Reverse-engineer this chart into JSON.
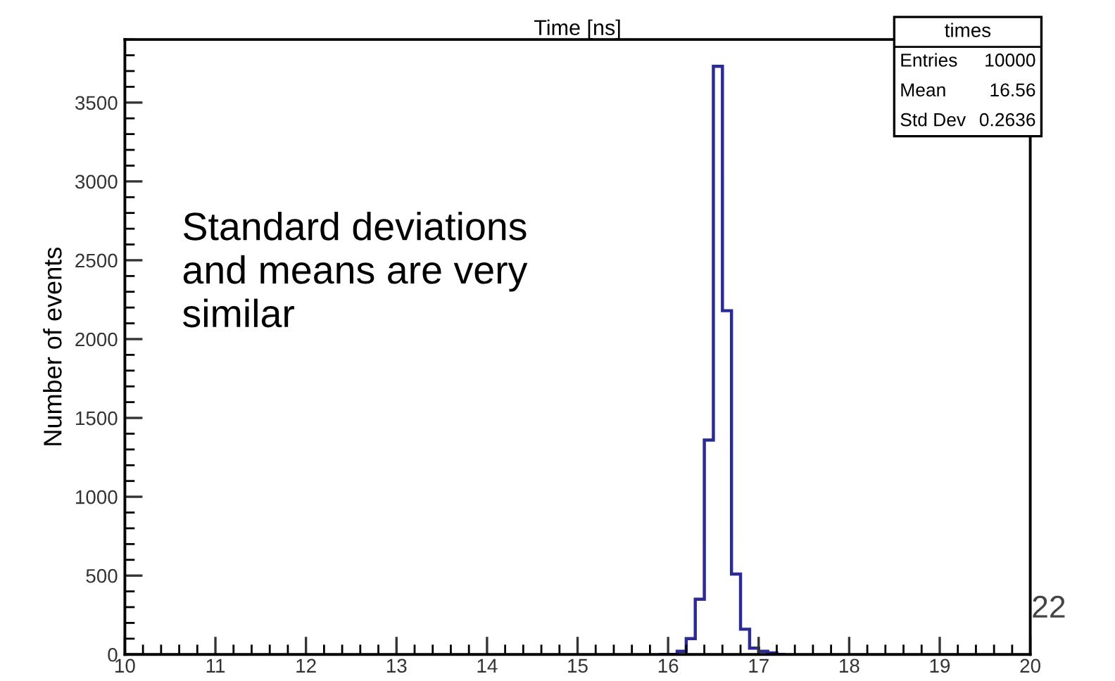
{
  "chart_data": {
    "type": "histogram",
    "title": "Time [ns]",
    "ylabel": "Number of events",
    "bins": [
      15.9,
      16.0,
      16.1,
      16.2,
      16.3,
      16.4,
      16.5,
      16.6,
      16.7,
      16.8,
      16.9,
      17.0,
      17.1,
      17.2,
      17.3
    ],
    "values": [
      0,
      0,
      20,
      100,
      350,
      1360,
      3730,
      2180,
      510,
      160,
      40,
      20,
      10,
      0
    ],
    "color": "#2a2a9c",
    "xlim": [
      10,
      20
    ],
    "xticks": [
      10,
      11,
      12,
      13,
      14,
      15,
      16,
      17,
      18,
      19,
      20
    ],
    "ylim": [
      0,
      3900
    ],
    "yticks": [
      0,
      500,
      1000,
      1500,
      2000,
      2500,
      3000,
      3500
    ],
    "grid": false,
    "annotations": [
      "Standard deviations\nand means are very\nsimilar",
      "times",
      "Entries",
      "10000",
      "Mean",
      "16.56",
      "Std Dev",
      "0.2636",
      "22"
    ]
  }
}
